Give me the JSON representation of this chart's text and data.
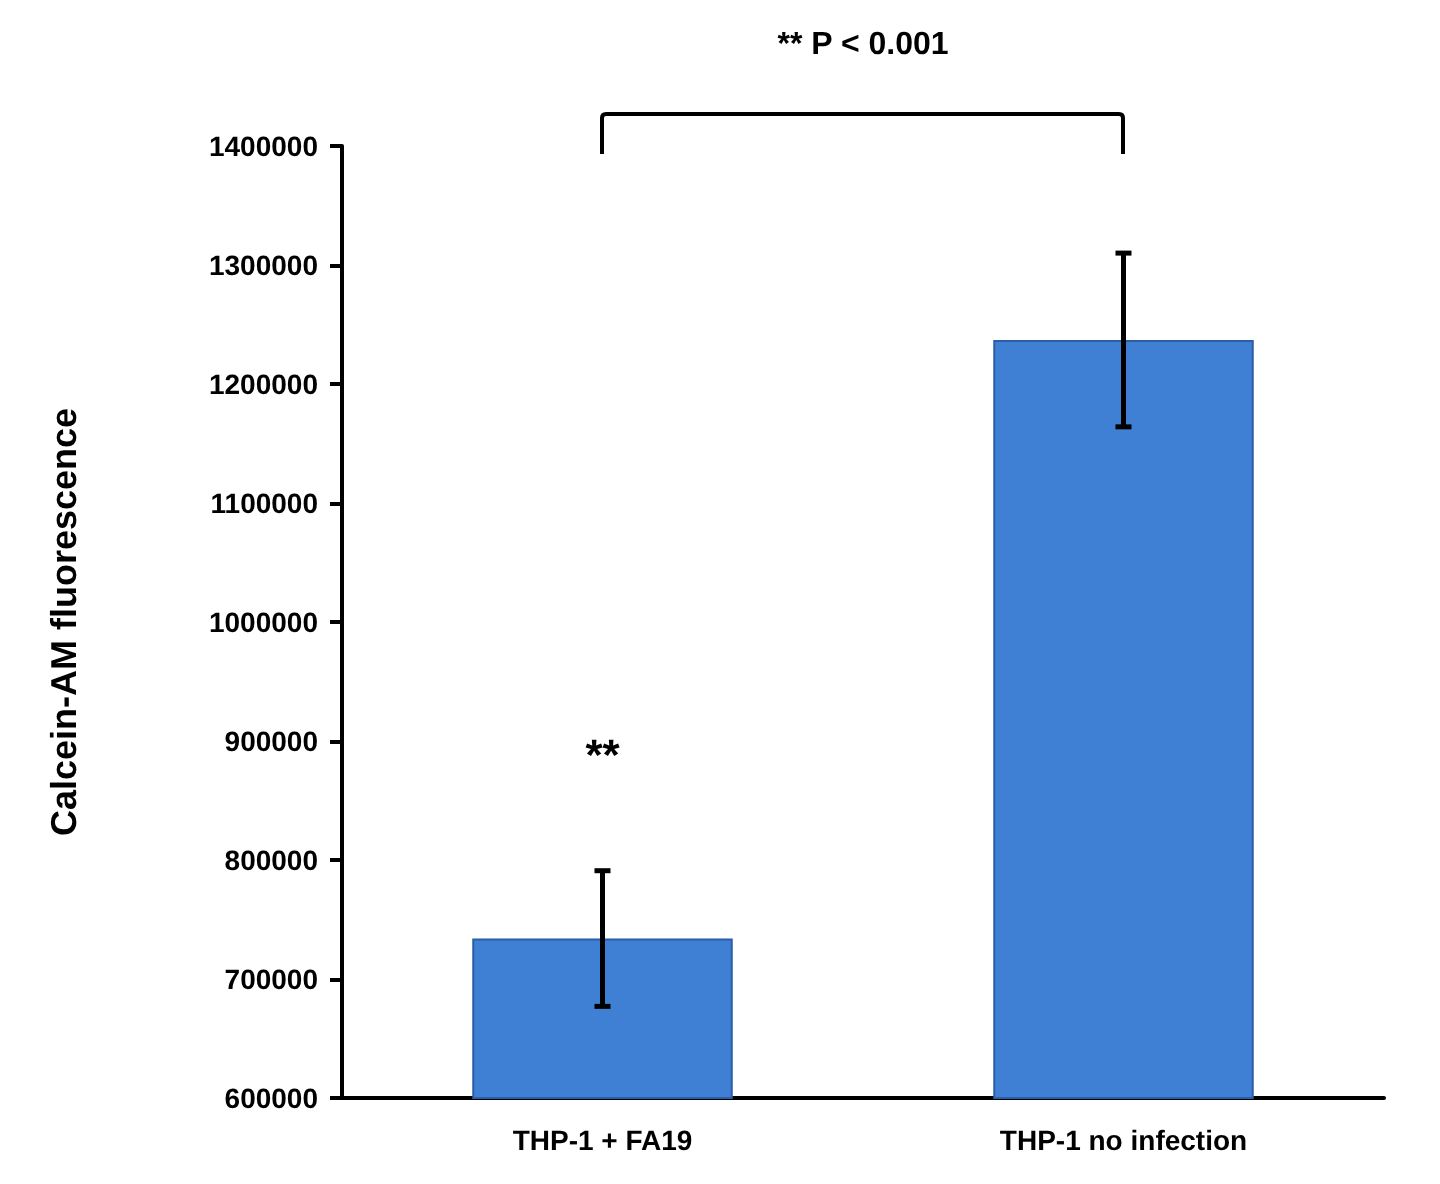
{
  "chart_data": {
    "type": "bar",
    "ylabel": "Calcein-AM fluorescence",
    "categories": [
      "THP-1 + FA19",
      "THP-1 no infection"
    ],
    "values": [
      734000,
      1237000
    ],
    "errors": [
      57000,
      73000
    ],
    "color": "#3f7fd4",
    "ylim": [
      600000,
      1400000
    ],
    "yticks": [
      600000,
      700000,
      800000,
      900000,
      1000000,
      1100000,
      1200000,
      1300000,
      1400000
    ],
    "grid": false,
    "annotations": [
      "** P < 0.001",
      "**"
    ]
  }
}
